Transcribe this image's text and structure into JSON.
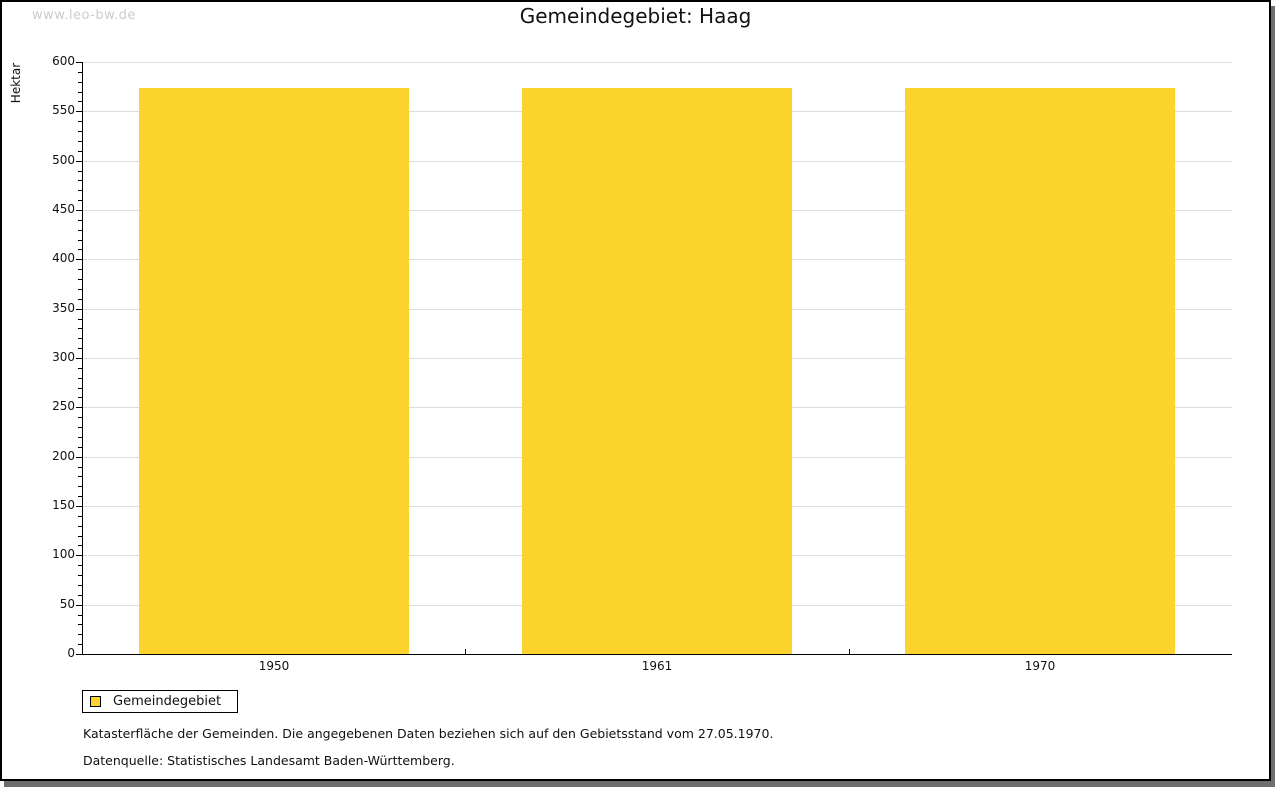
{
  "watermark": "www.leo-bw.de",
  "title": "Gemeindegebiet: Haag",
  "chart_data": {
    "type": "bar",
    "title": "Gemeindegebiet: Haag",
    "categories": [
      "1950",
      "1961",
      "1970"
    ],
    "series": [
      {
        "name": "Gemeindegebiet",
        "values": [
          574,
          574,
          574
        ]
      }
    ],
    "xlabel": "",
    "ylabel": "Hektar",
    "ylim": [
      0,
      600
    ],
    "ytick_major": 50,
    "ytick_minor": 10,
    "grid": "horizontal-major",
    "legend_position": "bottom-left",
    "bar_color": "#fcd42d",
    "grid_color": "#dddddd",
    "axis_color": "#000000"
  },
  "legend": {
    "label": "Gemeindegebiet"
  },
  "notes": {
    "line1": "Katasterfläche der Gemeinden. Die angegebenen Daten beziehen sich auf den Gebietsstand vom 27.05.1970.",
    "line2": "Datenquelle: Statistisches Landesamt Baden-Württemberg."
  }
}
